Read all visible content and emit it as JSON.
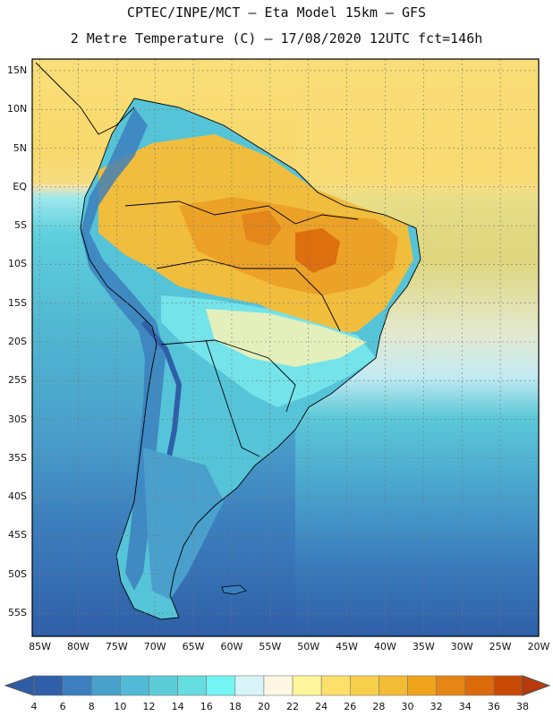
{
  "header": {
    "line1": "CPTEC/INPE/MCT –  Eta Model 15km – GFS",
    "line2": "2 Metre Temperature (C) – 17/08/2020 12UTC fct=146h"
  },
  "map": {
    "variable": "2 Metre Temperature",
    "units": "C",
    "lat_labels": [
      "15N",
      "10N",
      "5N",
      "EQ",
      "5S",
      "10S",
      "15S",
      "20S",
      "25S",
      "30S",
      "35S",
      "40S",
      "45S",
      "50S",
      "55S"
    ],
    "lat_values": [
      15,
      10,
      5,
      0,
      -5,
      -10,
      -15,
      -20,
      -25,
      -30,
      -35,
      -40,
      -45,
      -50,
      -55
    ],
    "lon_labels": [
      "85W",
      "80W",
      "75W",
      "70W",
      "65W",
      "60W",
      "55W",
      "50W",
      "45W",
      "40W",
      "35W",
      "30W",
      "25W",
      "20W"
    ],
    "lon_values": [
      -85,
      -80,
      -75,
      -70,
      -65,
      -60,
      -55,
      -50,
      -45,
      -40,
      -35,
      -30,
      -25,
      -20
    ],
    "lat_range": [
      -58,
      16.5
    ],
    "lon_range": [
      -86,
      -20
    ]
  },
  "colorbar": {
    "ticks": [
      "4",
      "6",
      "8",
      "10",
      "12",
      "14",
      "16",
      "18",
      "20",
      "22",
      "24",
      "26",
      "28",
      "30",
      "32",
      "34",
      "36",
      "38"
    ],
    "colors": [
      "#2f5fa8",
      "#3b7fbf",
      "#48a0cc",
      "#52b9d6",
      "#5cccd9",
      "#66dde0",
      "#74f5f5",
      "#d7f5f9",
      "#fff7e3",
      "#fff59a",
      "#fce06a",
      "#f8cf4a",
      "#f2bc35",
      "#f0a41c",
      "#e58616",
      "#db6a0b",
      "#c84a06"
    ],
    "low_color": "#2e5da5",
    "high_color": "#b63a0a"
  }
}
